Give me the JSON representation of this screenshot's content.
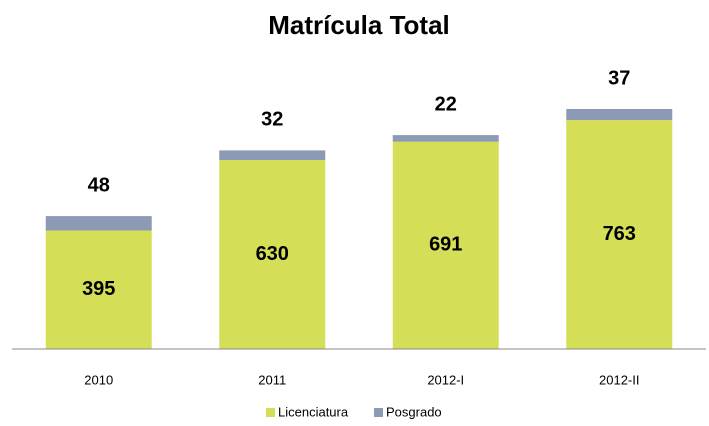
{
  "chart_data": {
    "type": "stacked_bar",
    "title": "Matrícula Total",
    "categories": [
      "2010",
      "2011",
      "2012-I",
      "2012-II"
    ],
    "series": [
      {
        "name": "Licenciatura",
        "color": "#d4df57",
        "values": [
          395,
          630,
          691,
          763
        ]
      },
      {
        "name": "Posgrado",
        "color": "#8d9ab6",
        "values": [
          48,
          32,
          22,
          37
        ]
      }
    ],
    "ylim": [
      0,
      900
    ],
    "legend": "bottom"
  }
}
